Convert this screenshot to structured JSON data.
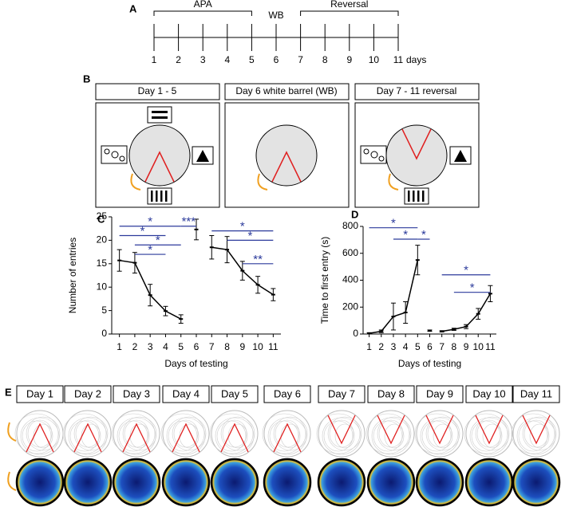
{
  "timeline": {
    "label": "A",
    "brackets": [
      "APA",
      "WB",
      "Reversal"
    ],
    "days": [
      1,
      2,
      3,
      4,
      5,
      6,
      7,
      8,
      9,
      10,
      11
    ],
    "unit": "days"
  },
  "arenas": {
    "label": "B",
    "titles": [
      "Day 1 - 5",
      "Day 6 white barrel (WB)",
      "Day 7 - 11 reversal"
    ]
  },
  "chart_data": [
    {
      "type": "line",
      "label": "C",
      "ylabel": "Number of entries",
      "xlabel": "Days of testing",
      "x": [
        1,
        2,
        3,
        4,
        5,
        6,
        7,
        8,
        9,
        10,
        11
      ],
      "xlim": [
        0.5,
        11.5
      ],
      "xticks": [
        1,
        2,
        3,
        4,
        5,
        6,
        7,
        8,
        9,
        10,
        11
      ],
      "ylim": [
        0,
        25
      ],
      "yticks": [
        0,
        5,
        10,
        15,
        20,
        25
      ],
      "color": "#000000",
      "annotation_color": "#2b3a9b",
      "series": [
        {
          "values": [
            15.7,
            15.2,
            8.3,
            4.9,
            3.2,
            null,
            null,
            null,
            null,
            null,
            null
          ],
          "errors": [
            2.3,
            2.2,
            2.3,
            1.0,
            0.9,
            null,
            null,
            null,
            null,
            null,
            null
          ]
        },
        {
          "values": [
            null,
            null,
            null,
            null,
            null,
            22.3,
            null,
            null,
            null,
            null,
            null
          ],
          "errors": [
            null,
            null,
            null,
            null,
            null,
            2.2,
            null,
            null,
            null,
            null,
            null
          ]
        },
        {
          "values": [
            null,
            null,
            null,
            null,
            null,
            null,
            18.5,
            18.0,
            13.5,
            10.5,
            8.4
          ],
          "errors": [
            null,
            null,
            null,
            null,
            null,
            null,
            2.5,
            2.8,
            2.0,
            1.8,
            1.3
          ]
        }
      ],
      "annotations": [
        {
          "from": 1,
          "to": 5,
          "y": 23,
          "label": "*"
        },
        {
          "from": 1,
          "to": 4,
          "y": 21,
          "label": "*"
        },
        {
          "from": 2,
          "to": 5,
          "y": 19,
          "label": "*"
        },
        {
          "from": 2,
          "to": 4,
          "y": 17,
          "label": "*"
        },
        {
          "from": 5,
          "to": 6,
          "y": 23,
          "label": "***"
        },
        {
          "from": 7,
          "to": 11,
          "y": 22,
          "label": "*"
        },
        {
          "from": 8,
          "to": 11,
          "y": 20,
          "label": "*"
        },
        {
          "from": 9,
          "to": 11,
          "y": 15,
          "label": "**"
        }
      ]
    },
    {
      "type": "line",
      "label": "D",
      "ylabel": "Time to first entry (s)",
      "xlabel": "Days of testing",
      "x": [
        1,
        2,
        3,
        4,
        5,
        6,
        7,
        8,
        9,
        10,
        11
      ],
      "xlim": [
        0.5,
        11.5
      ],
      "xticks": [
        1,
        2,
        3,
        4,
        5,
        6,
        7,
        8,
        9,
        10,
        11
      ],
      "ylim": [
        0,
        800
      ],
      "yticks": [
        0,
        200,
        400,
        600,
        800
      ],
      "color": "#000000",
      "annotation_color": "#2b3a9b",
      "series": [
        {
          "values": [
            5,
            20,
            130,
            160,
            550,
            null,
            null,
            null,
            null,
            null,
            null
          ],
          "errors": [
            5,
            10,
            100,
            80,
            110,
            null,
            null,
            null,
            null,
            null,
            null
          ]
        },
        {
          "values": [
            null,
            null,
            null,
            null,
            null,
            25,
            null,
            null,
            null,
            null,
            null
          ],
          "errors": [
            null,
            null,
            null,
            null,
            null,
            5,
            null,
            null,
            null,
            null,
            null
          ]
        },
        {
          "values": [
            null,
            null,
            null,
            null,
            null,
            null,
            20,
            35,
            55,
            150,
            300
          ],
          "errors": [
            null,
            null,
            null,
            null,
            null,
            null,
            5,
            8,
            15,
            40,
            60
          ]
        }
      ],
      "annotations": [
        {
          "from": 1,
          "to": 5,
          "y": 790,
          "label": "*"
        },
        {
          "from": 3,
          "to": 5,
          "y": 705,
          "label": "*"
        },
        {
          "from": 5,
          "to": 6,
          "y": 705,
          "label": "*"
        },
        {
          "from": 7,
          "to": 11,
          "y": 440,
          "label": "*"
        },
        {
          "from": 8,
          "to": 11,
          "y": 310,
          "label": "*"
        }
      ]
    }
  ],
  "trajectories": {
    "label": "E",
    "days": [
      "Day 1",
      "Day 2",
      "Day 3",
      "Day 4",
      "Day 5",
      "Day 6",
      "Day 7",
      "Day 8",
      "Day 9",
      "Day 10",
      "Day 11"
    ]
  }
}
